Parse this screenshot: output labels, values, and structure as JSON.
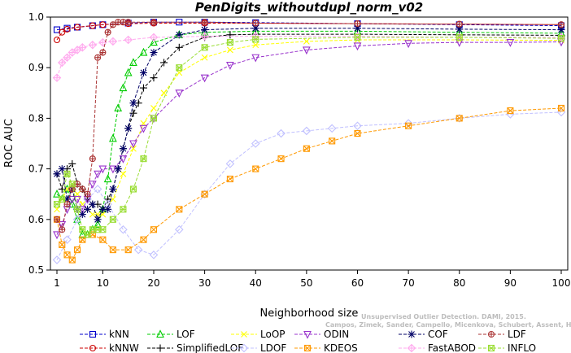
{
  "chart_data": {
    "type": "line",
    "title": "PenDigits_withoutdupl_norm_v02",
    "xlabel": "Neighborhood size",
    "ylabel": "ROC AUC",
    "xlim": [
      1,
      100
    ],
    "ylim": [
      0.5,
      1.0
    ],
    "xticks": [
      "1",
      "10",
      "20",
      "30",
      "40",
      "50",
      "60",
      "70",
      "80",
      "90",
      "100"
    ],
    "yticks": [
      "0.5",
      "0.6",
      "0.7",
      "0.8",
      "0.9",
      "1.0"
    ],
    "grid": false,
    "legend_position": "bottom",
    "watermark": [
      "Unsupervised Outlier Detection. DAMI, 2015.",
      "Campos, Zimek, Sander, Campello, Micenkova, Schubert, Assent, Houle"
    ],
    "series": [
      {
        "name": "kNN",
        "color": "#0000cc",
        "marker": "square",
        "x": [
          1,
          3,
          5,
          8,
          10,
          15,
          20,
          25,
          30,
          40,
          60,
          80,
          100
        ],
        "y": [
          0.975,
          0.978,
          0.98,
          0.983,
          0.985,
          0.988,
          0.99,
          0.99,
          0.99,
          0.989,
          0.987,
          0.985,
          0.983
        ]
      },
      {
        "name": "kNNW",
        "color": "#cc0000",
        "marker": "circle",
        "x": [
          1,
          2,
          3,
          5,
          8,
          10,
          15,
          20,
          30,
          40,
          60,
          80,
          100
        ],
        "y": [
          0.955,
          0.97,
          0.976,
          0.98,
          0.983,
          0.985,
          0.987,
          0.988,
          0.988,
          0.988,
          0.987,
          0.986,
          0.985
        ]
      },
      {
        "name": "LOF",
        "color": "#00cc00",
        "marker": "triangle-up",
        "x": [
          1,
          2,
          3,
          4,
          5,
          6,
          7,
          8,
          9,
          10,
          11,
          12,
          13,
          14,
          15,
          16,
          18,
          20,
          25,
          30,
          40,
          60,
          80,
          100
        ],
        "y": [
          0.65,
          0.64,
          0.66,
          0.63,
          0.6,
          0.57,
          0.57,
          0.58,
          0.59,
          0.62,
          0.68,
          0.76,
          0.82,
          0.86,
          0.89,
          0.91,
          0.93,
          0.95,
          0.965,
          0.97,
          0.972,
          0.972,
          0.97,
          0.968
        ]
      },
      {
        "name": "SimplifiedLOF",
        "color": "#000000",
        "marker": "plus",
        "x": [
          1,
          2,
          3,
          4,
          5,
          6,
          7,
          8,
          9,
          10,
          11,
          12,
          13,
          14,
          15,
          16,
          17,
          18,
          20,
          22,
          25,
          30,
          35,
          40,
          60,
          80,
          100
        ],
        "y": [
          0.69,
          0.66,
          0.7,
          0.71,
          0.67,
          0.66,
          0.64,
          0.63,
          0.63,
          0.62,
          0.64,
          0.66,
          0.7,
          0.74,
          0.78,
          0.81,
          0.83,
          0.86,
          0.88,
          0.91,
          0.94,
          0.96,
          0.965,
          0.966,
          0.966,
          0.965,
          0.964
        ]
      },
      {
        "name": "LoOP",
        "color": "#ffff00",
        "marker": "x",
        "x": [
          1,
          2,
          3,
          4,
          5,
          6,
          7,
          8,
          9,
          10,
          12,
          14,
          16,
          18,
          20,
          22,
          25,
          30,
          35,
          40,
          50,
          60,
          80,
          100
        ],
        "y": [
          0.62,
          0.64,
          0.66,
          0.67,
          0.65,
          0.63,
          0.62,
          0.61,
          0.61,
          0.61,
          0.64,
          0.69,
          0.74,
          0.79,
          0.82,
          0.85,
          0.89,
          0.92,
          0.935,
          0.945,
          0.952,
          0.955,
          0.955,
          0.954
        ]
      },
      {
        "name": "LDOF",
        "color": "#c0c0ff",
        "marker": "diamond",
        "x": [
          1,
          3,
          5,
          7,
          9,
          11,
          14,
          17,
          20,
          25,
          30,
          35,
          40,
          45,
          50,
          55,
          60,
          70,
          80,
          90,
          100
        ],
        "y": [
          0.52,
          0.56,
          0.6,
          0.64,
          0.66,
          0.63,
          0.58,
          0.54,
          0.53,
          0.58,
          0.65,
          0.71,
          0.75,
          0.77,
          0.775,
          0.78,
          0.785,
          0.79,
          0.8,
          0.808,
          0.812
        ]
      },
      {
        "name": "ODIN",
        "color": "#9933cc",
        "marker": "triangle-down",
        "x": [
          1,
          2,
          3,
          4,
          5,
          6,
          7,
          8,
          9,
          10,
          12,
          14,
          16,
          18,
          20,
          25,
          30,
          35,
          40,
          50,
          60,
          70,
          80,
          90,
          100
        ],
        "y": [
          0.57,
          0.59,
          0.62,
          0.64,
          0.64,
          0.62,
          0.64,
          0.67,
          0.69,
          0.7,
          0.7,
          0.72,
          0.75,
          0.78,
          0.8,
          0.85,
          0.88,
          0.905,
          0.92,
          0.935,
          0.943,
          0.948,
          0.95,
          0.95,
          0.951
        ]
      },
      {
        "name": "KDEOS",
        "color": "#ff9900",
        "marker": "square-x",
        "x": [
          1,
          2,
          3,
          4,
          5,
          6,
          8,
          10,
          12,
          15,
          18,
          20,
          25,
          30,
          35,
          40,
          45,
          50,
          55,
          60,
          70,
          80,
          90,
          100
        ],
        "y": [
          0.6,
          0.55,
          0.53,
          0.52,
          0.54,
          0.56,
          0.57,
          0.56,
          0.54,
          0.54,
          0.56,
          0.58,
          0.62,
          0.65,
          0.68,
          0.7,
          0.72,
          0.74,
          0.755,
          0.77,
          0.785,
          0.8,
          0.815,
          0.82
        ]
      },
      {
        "name": "COF",
        "color": "#000066",
        "marker": "asterisk",
        "x": [
          1,
          2,
          3,
          4,
          5,
          6,
          7,
          8,
          9,
          10,
          11,
          12,
          13,
          14,
          15,
          16,
          18,
          20,
          25,
          30,
          40,
          60,
          80,
          100
        ],
        "y": [
          0.69,
          0.7,
          0.64,
          0.66,
          0.62,
          0.61,
          0.62,
          0.63,
          0.6,
          0.62,
          0.62,
          0.66,
          0.7,
          0.74,
          0.78,
          0.83,
          0.89,
          0.93,
          0.965,
          0.975,
          0.978,
          0.978,
          0.976,
          0.975
        ]
      },
      {
        "name": "FastABOD",
        "color": "#ffaaee",
        "marker": "diamond-plus",
        "x": [
          1,
          2,
          3,
          4,
          5,
          6,
          8,
          10,
          12,
          15,
          20,
          30,
          40,
          60,
          80,
          100
        ],
        "y": [
          0.88,
          0.91,
          0.92,
          0.93,
          0.935,
          0.94,
          0.945,
          0.95,
          0.952,
          0.955,
          0.96,
          0.962,
          0.962,
          0.962,
          0.96,
          0.96
        ]
      },
      {
        "name": "LDF",
        "color": "#aa3333",
        "marker": "circle-plus",
        "x": [
          1,
          2,
          3,
          4,
          5,
          6,
          7,
          8,
          9,
          10,
          11,
          12,
          13,
          14,
          15,
          20,
          30,
          40,
          60,
          80,
          100
        ],
        "y": [
          0.6,
          0.58,
          0.63,
          0.66,
          0.67,
          0.66,
          0.65,
          0.72,
          0.92,
          0.93,
          0.97,
          0.985,
          0.99,
          0.99,
          0.99,
          0.99,
          0.99,
          0.988,
          0.987,
          0.986,
          0.985
        ]
      },
      {
        "name": "INFLO",
        "color": "#99dd33",
        "marker": "star-box",
        "x": [
          1,
          2,
          3,
          4,
          5,
          6,
          7,
          8,
          9,
          10,
          12,
          14,
          16,
          18,
          20,
          25,
          30,
          35,
          40,
          60,
          80,
          100
        ],
        "y": [
          0.63,
          0.64,
          0.69,
          0.67,
          0.62,
          0.58,
          0.57,
          0.58,
          0.58,
          0.58,
          0.6,
          0.62,
          0.66,
          0.72,
          0.8,
          0.9,
          0.94,
          0.95,
          0.956,
          0.96,
          0.96,
          0.958
        ]
      }
    ]
  }
}
